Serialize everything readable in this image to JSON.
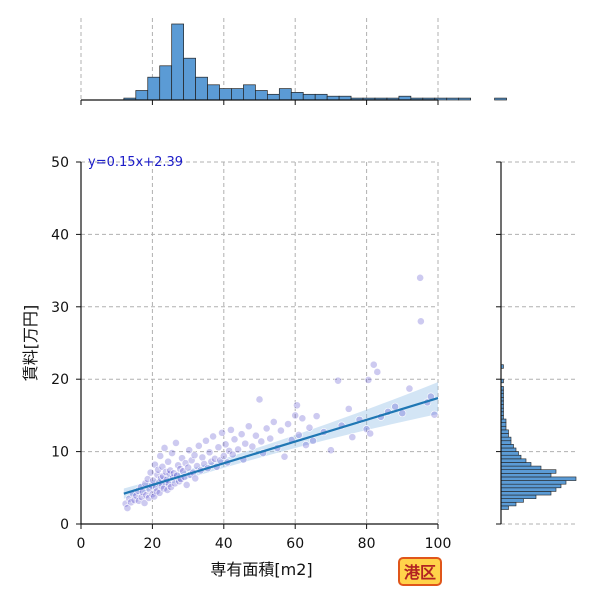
{
  "chart_data": {
    "type": "scatter",
    "title": "",
    "xlabel": "専有面積[m2]",
    "ylabel": "賃料[万円]",
    "xlim": [
      0,
      100
    ],
    "ylim": [
      0,
      50
    ],
    "xticks": [
      "0",
      "20",
      "40",
      "60",
      "80",
      "100"
    ],
    "yticks": [
      "0",
      "10",
      "20",
      "30",
      "40",
      "50"
    ],
    "grid": true,
    "equation": "y=0.15x+2.39",
    "badge": "港区",
    "colors": {
      "points": "#4a3fc8",
      "fit_line": "#1f77b4",
      "hist": "#5b9bd5"
    },
    "regression": {
      "slope": 0.15,
      "intercept": 2.39,
      "x_range": [
        12,
        100
      ]
    },
    "points": [
      [
        12.5,
        2.8
      ],
      [
        13,
        2.2
      ],
      [
        13.5,
        3.5
      ],
      [
        14,
        3.0
      ],
      [
        14.5,
        4.2
      ],
      [
        15,
        3.3
      ],
      [
        15.5,
        3.9
      ],
      [
        16,
        4.6
      ],
      [
        16.2,
        3.2
      ],
      [
        16.8,
        5.1
      ],
      [
        17,
        3.7
      ],
      [
        17.3,
        4.4
      ],
      [
        17.8,
        2.9
      ],
      [
        18,
        5.6
      ],
      [
        18.3,
        4.0
      ],
      [
        18.7,
        6.2
      ],
      [
        19,
        3.6
      ],
      [
        19.2,
        4.8
      ],
      [
        19.5,
        7.1
      ],
      [
        19.8,
        5.3
      ],
      [
        20,
        4.1
      ],
      [
        20.2,
        6.0
      ],
      [
        20.5,
        3.8
      ],
      [
        20.7,
        8.2
      ],
      [
        21,
        5.0
      ],
      [
        21.2,
        4.5
      ],
      [
        21.4,
        6.8
      ],
      [
        21.6,
        7.5
      ],
      [
        21.8,
        5.7
      ],
      [
        22,
        4.3
      ],
      [
        22.2,
        9.4
      ],
      [
        22.4,
        6.3
      ],
      [
        22.6,
        5.2
      ],
      [
        22.8,
        7.9
      ],
      [
        23,
        6.6
      ],
      [
        23.2,
        4.9
      ],
      [
        23.4,
        10.5
      ],
      [
        23.6,
        5.8
      ],
      [
        23.8,
        7.2
      ],
      [
        24,
        6.1
      ],
      [
        24.2,
        4.7
      ],
      [
        24.4,
        8.6
      ],
      [
        24.6,
        5.5
      ],
      [
        24.8,
        6.9
      ],
      [
        25,
        7.4
      ],
      [
        25.2,
        5.1
      ],
      [
        25.5,
        9.8
      ],
      [
        25.8,
        6.4
      ],
      [
        26,
        7.0
      ],
      [
        26.3,
        5.6
      ],
      [
        26.6,
        11.2
      ],
      [
        26.9,
        6.7
      ],
      [
        27.2,
        8.1
      ],
      [
        27.5,
        5.9
      ],
      [
        27.8,
        7.6
      ],
      [
        28,
        6.2
      ],
      [
        28.3,
        9.1
      ],
      [
        28.6,
        7.3
      ],
      [
        29,
        6.5
      ],
      [
        29.3,
        8.4
      ],
      [
        29.6,
        5.4
      ],
      [
        30,
        7.8
      ],
      [
        30.3,
        10.2
      ],
      [
        30.6,
        6.8
      ],
      [
        31,
        8.8
      ],
      [
        31.4,
        7.1
      ],
      [
        31.8,
        9.5
      ],
      [
        32,
        6.3
      ],
      [
        32.5,
        8.0
      ],
      [
        33,
        10.8
      ],
      [
        33.5,
        7.4
      ],
      [
        34,
        9.2
      ],
      [
        34.5,
        8.3
      ],
      [
        35,
        11.5
      ],
      [
        35.5,
        7.7
      ],
      [
        36,
        9.9
      ],
      [
        36.5,
        8.6
      ],
      [
        37,
        12.1
      ],
      [
        37.5,
        9.0
      ],
      [
        38,
        7.9
      ],
      [
        38.5,
        10.6
      ],
      [
        39,
        8.8
      ],
      [
        39.5,
        12.6
      ],
      [
        40,
        9.4
      ],
      [
        40.5,
        11.0
      ],
      [
        41,
        8.5
      ],
      [
        41.5,
        10.1
      ],
      [
        42,
        13.0
      ],
      [
        42.5,
        9.6
      ],
      [
        43,
        11.7
      ],
      [
        44,
        10.3
      ],
      [
        45,
        12.4
      ],
      [
        45.5,
        8.9
      ],
      [
        46,
        11.1
      ],
      [
        47,
        13.5
      ],
      [
        48,
        10.7
      ],
      [
        49,
        12.2
      ],
      [
        50,
        17.2
      ],
      [
        50.5,
        11.4
      ],
      [
        51,
        9.8
      ],
      [
        52,
        13.2
      ],
      [
        53,
        11.8
      ],
      [
        54,
        14.1
      ],
      [
        55,
        10.5
      ],
      [
        56,
        12.9
      ],
      [
        57,
        9.3
      ],
      [
        58,
        13.8
      ],
      [
        59,
        11.6
      ],
      [
        60,
        15.0
      ],
      [
        60.5,
        16.4
      ],
      [
        61,
        12.3
      ],
      [
        62,
        14.6
      ],
      [
        63,
        10.9
      ],
      [
        64,
        13.3
      ],
      [
        65,
        11.5
      ],
      [
        66,
        14.9
      ],
      [
        68,
        12.7
      ],
      [
        70,
        10.2
      ],
      [
        72,
        19.8
      ],
      [
        73,
        13.6
      ],
      [
        75,
        15.9
      ],
      [
        76,
        12.0
      ],
      [
        78,
        14.4
      ],
      [
        80,
        13.1
      ],
      [
        80.5,
        19.9
      ],
      [
        81,
        12.5
      ],
      [
        82,
        22.0
      ],
      [
        83,
        21.0
      ],
      [
        84,
        14.8
      ],
      [
        86,
        15.5
      ],
      [
        88,
        16.2
      ],
      [
        90,
        15.3
      ],
      [
        92,
        18.7
      ],
      [
        95,
        34.0
      ],
      [
        95.2,
        28.0
      ],
      [
        97,
        16.8
      ],
      [
        98,
        17.6
      ],
      [
        99,
        15.1
      ]
    ],
    "histogram_x": {
      "bin_width": 3.35,
      "start": 12,
      "counts": [
        1,
        5,
        12,
        18,
        40,
        22,
        12,
        8,
        6,
        6,
        8,
        5,
        3,
        6,
        4,
        3,
        3,
        2,
        2,
        1,
        1,
        1,
        1,
        2,
        1,
        1,
        1,
        1,
        1,
        0,
        0,
        1,
        0,
        0,
        0,
        0,
        0,
        0,
        0,
        0,
        0,
        0
      ]
    },
    "histogram_y": {
      "bin_width": 0.5,
      "start": 2,
      "counts": [
        3,
        6,
        9,
        14,
        20,
        22,
        24,
        26,
        30,
        20,
        22,
        16,
        12,
        10,
        8,
        7,
        6,
        5,
        4,
        4,
        3,
        3,
        2,
        2,
        2,
        1,
        1,
        1,
        1,
        1,
        1,
        1,
        1,
        1,
        0,
        1,
        0,
        0,
        0,
        1
      ]
    }
  }
}
